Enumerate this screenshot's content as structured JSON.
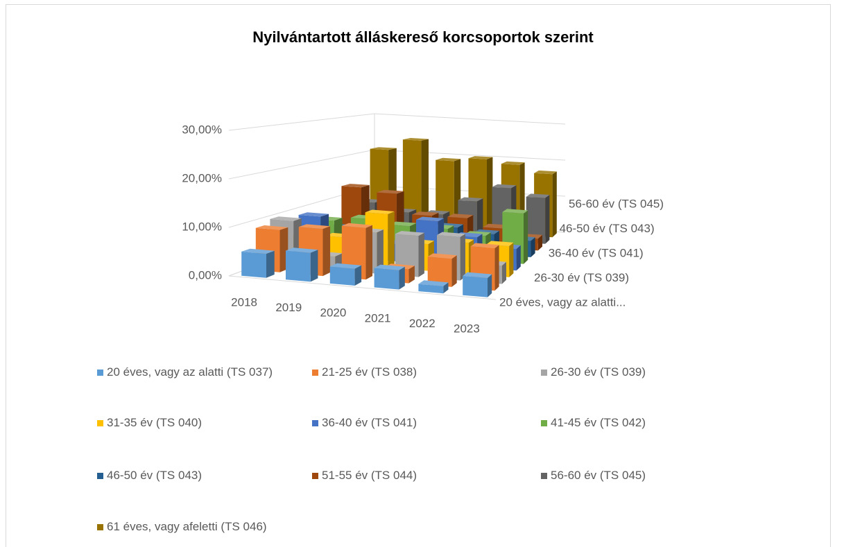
{
  "chart_data": {
    "type": "bar",
    "title": "Nyilvántartott álláskereső korcsoportok szerint",
    "categories": [
      "2018",
      "2019",
      "2020",
      "2021",
      "2022",
      "2023"
    ],
    "depth_categories": [
      "20 éves, vagy az alatti...",
      null,
      "26-30 év (TS 039)",
      null,
      "36-40 év (TS 041)",
      null,
      "46-50 év (TS 043)",
      null,
      "56-60 év (TS 045)",
      null
    ],
    "ylim": [
      0,
      30
    ],
    "yticks": [
      {
        "value": 0,
        "label": "0,00%"
      },
      {
        "value": 10,
        "label": "10,00%"
      },
      {
        "value": 20,
        "label": "20,00%"
      },
      {
        "value": 30,
        "label": "30,00%"
      }
    ],
    "grid": true,
    "legend": "bottom",
    "series": [
      {
        "name": "20 éves, vagy az alatti (TS 037)",
        "color": "#5b9bd5",
        "values": [
          5,
          6,
          3.5,
          4,
          1.5,
          4
        ]
      },
      {
        "name": "21-25 év (TS 038)",
        "color": "#ed7d31",
        "values": [
          9,
          10,
          11,
          3,
          6,
          9
        ]
      },
      {
        "name": "26-30 év (TS 039)",
        "color": "#a5a5a5",
        "values": [
          10,
          3,
          9,
          9,
          9.5,
          4
        ]
      },
      {
        "name": "31-35 év (TS 040)",
        "color": "#ffc000",
        "values": [
          5,
          6,
          12,
          6,
          7,
          7
        ]
      },
      {
        "name": "36-40 év (TS 041)",
        "color": "#4472c4",
        "values": [
          9,
          5,
          4,
          10,
          7,
          5
        ]
      },
      {
        "name": "41-45 év (TS 042)",
        "color": "#70ad47",
        "values": [
          7,
          8,
          7,
          7,
          6,
          12
        ]
      },
      {
        "name": "46-50 év (TS 043)",
        "color": "#255e91",
        "values": [
          4,
          4,
          4,
          6,
          5,
          4
        ]
      },
      {
        "name": "51-55 év (TS 044)",
        "color": "#9e480e",
        "values": [
          13,
          12,
          7,
          7,
          5,
          3
        ]
      },
      {
        "name": "56-60 év (TS 045)",
        "color": "#636363",
        "values": [
          8,
          6,
          6,
          10,
          14,
          12
        ]
      },
      {
        "name": "61 éves, vagy afeletti (TS 046)",
        "color": "#997300",
        "values": [
          21,
          24,
          19,
          20,
          19,
          17
        ]
      }
    ]
  }
}
